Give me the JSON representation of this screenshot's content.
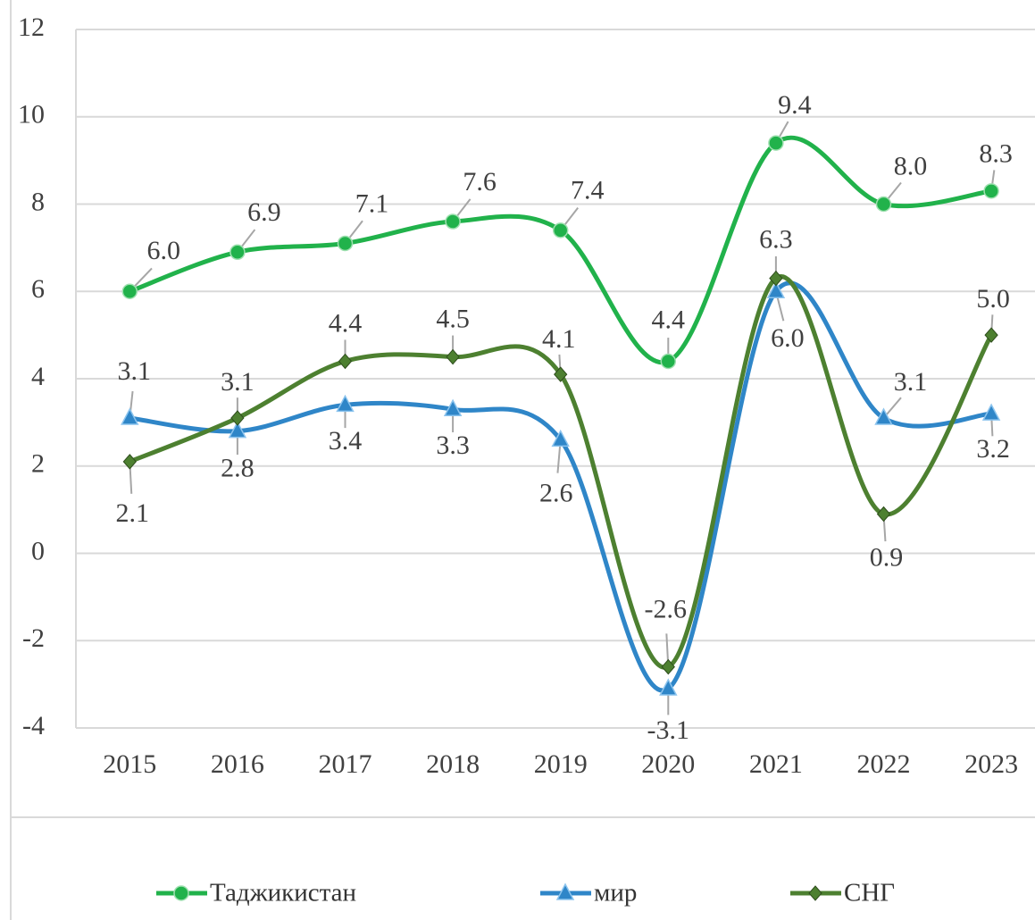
{
  "chart_data": {
    "type": "line",
    "categories": [
      "2015",
      "2016",
      "2017",
      "2018",
      "2019",
      "2020",
      "2021",
      "2022",
      "2023"
    ],
    "series": [
      {
        "name": "Таджикистан",
        "color": "#21b24b",
        "marker": "circle",
        "values": [
          6.0,
          6.9,
          7.1,
          7.6,
          7.4,
          4.4,
          9.4,
          8.0,
          8.3
        ],
        "value_labels": [
          "6.0",
          "6.9",
          "7.1",
          "7.6",
          "7.4",
          "4.4",
          "9.4",
          "8.0",
          "8.3"
        ]
      },
      {
        "name": "мир",
        "color": "#2f86c8",
        "marker": "triangle",
        "values": [
          3.1,
          2.8,
          3.4,
          3.3,
          2.6,
          -3.1,
          6.0,
          3.1,
          3.2
        ],
        "value_labels": [
          "3.1",
          "2.8",
          "3.4",
          "3.3",
          "2.6",
          "-3.1",
          "6.0",
          "3.1",
          "3.2"
        ]
      },
      {
        "name": "СНГ",
        "color": "#4d8030",
        "marker": "diamond",
        "values": [
          2.1,
          3.1,
          4.4,
          4.5,
          4.1,
          -2.6,
          6.3,
          0.9,
          5.0
        ],
        "value_labels": [
          "2.1",
          "3.1",
          "4.4",
          "4.5",
          "4.1",
          "-2.6",
          "6.3",
          "0.9",
          "5.0"
        ]
      }
    ],
    "ylim": [
      -4,
      12
    ],
    "yticks": [
      -4,
      -2,
      0,
      2,
      4,
      6,
      8,
      10,
      12
    ],
    "grid": true,
    "legend": "bottom"
  }
}
